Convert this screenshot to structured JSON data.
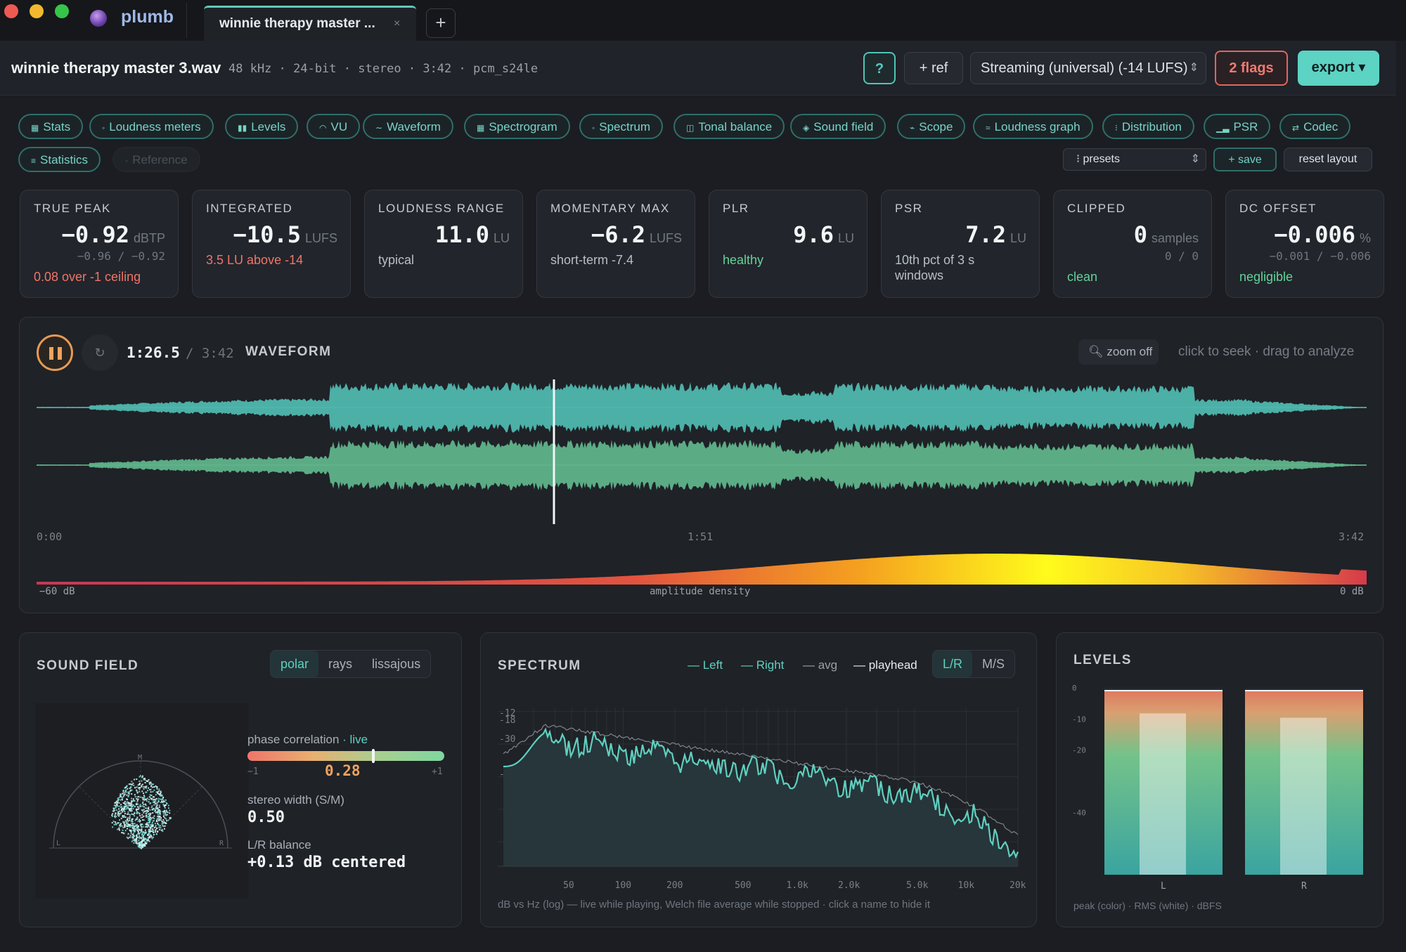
{
  "app": {
    "name": "plumb"
  },
  "tabs": [
    {
      "label": "winnie therapy master ...",
      "close": "×"
    }
  ],
  "new_tab_label": "+",
  "file": {
    "name": "winnie therapy master 3.wav",
    "meta": "48 kHz · 24-bit · stereo · 3:42 · pcm_s24le"
  },
  "header": {
    "help_label": "?",
    "ref_label": "+ ref",
    "target_value": "Streaming (universal) (-14 LUFS)",
    "flags_label": "2 flags",
    "export_label": "export ▾"
  },
  "panels": [
    {
      "label": "Stats",
      "icon": "▦"
    },
    {
      "label": "Loudness meters",
      "icon": "◦"
    },
    {
      "label": "Levels",
      "icon": "▮▮"
    },
    {
      "label": "VU",
      "icon": "◠"
    },
    {
      "label": "Waveform",
      "icon": "∼"
    },
    {
      "label": "Spectrogram",
      "icon": "▦"
    },
    {
      "label": "Spectrum",
      "icon": "◦"
    },
    {
      "label": "Tonal balance",
      "icon": "◫"
    },
    {
      "label": "Sound field",
      "icon": "◈"
    },
    {
      "label": "Scope",
      "icon": "⌁"
    },
    {
      "label": "Loudness graph",
      "icon": "≈"
    },
    {
      "label": "Distribution",
      "icon": "⁝"
    },
    {
      "label": "PSR",
      "icon": "▁▃"
    },
    {
      "label": "Codec",
      "icon": "⇄"
    },
    {
      "label": "Statistics",
      "icon": "≡"
    },
    {
      "label": "Reference",
      "icon": "◦"
    }
  ],
  "layout": {
    "presets_label": "⁝ presets",
    "save_label": "+ save",
    "reset_label": "reset layout"
  },
  "stats": [
    {
      "title": "TRUE PEAK",
      "value": "−0.92",
      "unit": "dBTP",
      "sub": "−0.96 / −0.92",
      "note": "0.08 over -1 ceiling",
      "note_color": "#f0756a"
    },
    {
      "title": "INTEGRATED",
      "value": "−10.5",
      "unit": "LUFS",
      "sub": "",
      "note": "3.5 LU above -14",
      "note_color": "#f0756a"
    },
    {
      "title": "LOUDNESS RANGE",
      "value": "11.0",
      "unit": "LU",
      "sub": "",
      "note": "typical",
      "note_color": "#b9bfc6"
    },
    {
      "title": "MOMENTARY MAX",
      "value": "−6.2",
      "unit": "LUFS",
      "sub": "",
      "note": "short-term -7.4",
      "note_color": "#b9bfc6"
    },
    {
      "title": "PLR",
      "value": "9.6",
      "unit": "LU",
      "sub": "",
      "note": "healthy",
      "note_color": "#63d39a"
    },
    {
      "title": "PSR",
      "value": "7.2",
      "unit": "LU",
      "sub": "",
      "note": "10th pct of 3 s windows",
      "note_color": "#b9bfc6"
    },
    {
      "title": "CLIPPED",
      "value": "0",
      "unit": "samples",
      "sub": "0 / 0",
      "note": "clean",
      "note_color": "#63d39a"
    },
    {
      "title": "DC OFFSET",
      "value": "−0.006",
      "unit": "%",
      "sub": "−0.001 / −0.006",
      "note": "negligible",
      "note_color": "#63d39a"
    }
  ],
  "waveform": {
    "title": "WAVEFORM",
    "position": "1:26.5",
    "duration": "/ 3:42",
    "playhead_fraction": 0.389,
    "zoom_label": "zoom off",
    "hint": "click to seek · drag to analyze",
    "time_labels": [
      "0:00",
      "1:51",
      "3:42"
    ],
    "density_left": "−60 dB",
    "density_center": "amplitude density",
    "density_right": "0 dB",
    "colors": {
      "left": "#4fb8ae",
      "right": "#5fb48a"
    }
  },
  "sound_field": {
    "title": "SOUND FIELD",
    "modes": [
      "polar",
      "rays",
      "lissajous"
    ],
    "active_mode": "polar",
    "axis_labels": {
      "mid": "M",
      "left": "L",
      "right": "R"
    },
    "phase_label": "phase correlation",
    "phase_live": "· live",
    "phase_value": "0.28",
    "phase_min": "−1",
    "phase_max": "+1",
    "phase_fraction": 0.64,
    "width_label": "stereo width (S/M)",
    "width_value": "0.50",
    "balance_label": "L/R balance",
    "balance_value": "+0.13 dB centered"
  },
  "spectrum": {
    "title": "SPECTRUM",
    "legend": [
      {
        "name": "— Left",
        "color": "#5fd0c0"
      },
      {
        "name": "— Right",
        "color": "#5fd0c0"
      },
      {
        "name": "— avg",
        "color": "#9aa0a8"
      },
      {
        "name": "— playhead",
        "color": "#e8ebee"
      }
    ],
    "modes": [
      "L/R",
      "M/S"
    ],
    "active_mode": "L/R",
    "y_ticks": [
      "-12",
      "-18",
      "-30",
      "-48"
    ],
    "x_ticks": [
      "50",
      "100",
      "200",
      "500",
      "1.0k",
      "2.0k",
      "5.0k",
      "10k",
      "20k"
    ],
    "caption": "dB vs Hz (log) — live while playing, Welch file average while stopped · click a name to hide it"
  },
  "levels": {
    "title": "LEVELS",
    "y_ticks": [
      "0",
      "-10",
      "-20",
      "-40"
    ],
    "channels": [
      {
        "name": "L",
        "peak_db": -0.9,
        "rms_db": -8.2
      },
      {
        "name": "R",
        "peak_db": -0.9,
        "rms_db": -9.6
      }
    ],
    "caption": "peak (color) · RMS (white) · dBFS"
  }
}
